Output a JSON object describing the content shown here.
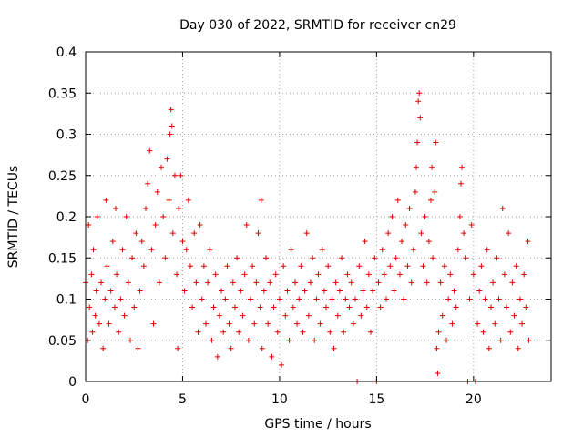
{
  "chart_data": {
    "type": "scatter",
    "title": "Day 030 of 2022, SRMTID for receiver cn29",
    "xlabel": "GPS time / hours",
    "ylabel": "SRMTID / TECUs",
    "xlim": [
      0,
      24
    ],
    "ylim": [
      0,
      0.4
    ],
    "xticks": [
      0,
      5,
      10,
      15,
      20
    ],
    "xtick_labels": [
      "0",
      "5",
      "10",
      "15",
      "20"
    ],
    "yticks": [
      0,
      0.05,
      0.1,
      0.15,
      0.2,
      0.25,
      0.3,
      0.35,
      0.4
    ],
    "ytick_labels": [
      "0",
      "0.05",
      "0.1",
      "0.15",
      "0.2",
      "0.25",
      "0.3",
      "0.35",
      "0.4"
    ],
    "grid": true,
    "marker": "+",
    "color": "#e00000",
    "series": [
      {
        "name": "cn29",
        "points": [
          [
            0.0,
            0.12
          ],
          [
            0.1,
            0.05
          ],
          [
            0.15,
            0.19
          ],
          [
            0.2,
            0.09
          ],
          [
            0.3,
            0.13
          ],
          [
            0.35,
            0.06
          ],
          [
            0.4,
            0.16
          ],
          [
            0.5,
            0.08
          ],
          [
            0.55,
            0.11
          ],
          [
            0.6,
            0.2
          ],
          [
            0.7,
            0.07
          ],
          [
            0.8,
            0.12
          ],
          [
            0.9,
            0.04
          ],
          [
            1.0,
            0.1
          ],
          [
            1.05,
            0.22
          ],
          [
            1.1,
            0.14
          ],
          [
            1.2,
            0.07
          ],
          [
            1.3,
            0.11
          ],
          [
            1.4,
            0.17
          ],
          [
            1.5,
            0.09
          ],
          [
            1.55,
            0.21
          ],
          [
            1.6,
            0.13
          ],
          [
            1.7,
            0.06
          ],
          [
            1.8,
            0.1
          ],
          [
            1.9,
            0.16
          ],
          [
            2.0,
            0.08
          ],
          [
            2.1,
            0.2
          ],
          [
            2.2,
            0.12
          ],
          [
            2.3,
            0.05
          ],
          [
            2.4,
            0.15
          ],
          [
            2.5,
            0.09
          ],
          [
            2.6,
            0.18
          ],
          [
            2.7,
            0.04
          ],
          [
            2.8,
            0.11
          ],
          [
            2.9,
            0.17
          ],
          [
            3.0,
            0.14
          ],
          [
            3.1,
            0.21
          ],
          [
            3.2,
            0.24
          ],
          [
            3.3,
            0.28
          ],
          [
            3.4,
            0.16
          ],
          [
            3.5,
            0.07
          ],
          [
            3.6,
            0.19
          ],
          [
            3.7,
            0.23
          ],
          [
            3.8,
            0.12
          ],
          [
            3.9,
            0.26
          ],
          [
            4.0,
            0.2
          ],
          [
            4.1,
            0.15
          ],
          [
            4.2,
            0.27
          ],
          [
            4.3,
            0.22
          ],
          [
            4.35,
            0.3
          ],
          [
            4.4,
            0.33
          ],
          [
            4.45,
            0.31
          ],
          [
            4.5,
            0.18
          ],
          [
            4.6,
            0.25
          ],
          [
            4.7,
            0.13
          ],
          [
            4.75,
            0.04
          ],
          [
            4.8,
            0.21
          ],
          [
            4.9,
            0.25
          ],
          [
            5.0,
            0.17
          ],
          [
            5.1,
            0.11
          ],
          [
            5.2,
            0.16
          ],
          [
            5.3,
            0.22
          ],
          [
            5.4,
            0.14
          ],
          [
            5.5,
            0.09
          ],
          [
            5.6,
            0.18
          ],
          [
            5.7,
            0.12
          ],
          [
            5.8,
            0.06
          ],
          [
            5.9,
            0.19
          ],
          [
            6.0,
            0.1
          ],
          [
            6.1,
            0.14
          ],
          [
            6.2,
            0.07
          ],
          [
            6.3,
            0.12
          ],
          [
            6.4,
            0.16
          ],
          [
            6.5,
            0.05
          ],
          [
            6.6,
            0.09
          ],
          [
            6.7,
            0.13
          ],
          [
            6.8,
            0.03
          ],
          [
            6.9,
            0.08
          ],
          [
            7.0,
            0.11
          ],
          [
            7.1,
            0.06
          ],
          [
            7.2,
            0.1
          ],
          [
            7.3,
            0.14
          ],
          [
            7.4,
            0.07
          ],
          [
            7.5,
            0.04
          ],
          [
            7.6,
            0.12
          ],
          [
            7.7,
            0.09
          ],
          [
            7.8,
            0.15
          ],
          [
            7.9,
            0.06
          ],
          [
            8.0,
            0.11
          ],
          [
            8.1,
            0.08
          ],
          [
            8.2,
            0.13
          ],
          [
            8.3,
            0.19
          ],
          [
            8.4,
            0.05
          ],
          [
            8.5,
            0.1
          ],
          [
            8.6,
            0.14
          ],
          [
            8.7,
            0.07
          ],
          [
            8.8,
            0.12
          ],
          [
            8.9,
            0.18
          ],
          [
            9.0,
            0.09
          ],
          [
            9.05,
            0.22
          ],
          [
            9.1,
            0.04
          ],
          [
            9.2,
            0.11
          ],
          [
            9.3,
            0.15
          ],
          [
            9.4,
            0.07
          ],
          [
            9.5,
            0.12
          ],
          [
            9.6,
            0.03
          ],
          [
            9.7,
            0.09
          ],
          [
            9.8,
            0.13
          ],
          [
            9.9,
            0.06
          ],
          [
            10.0,
            0.1
          ],
          [
            10.1,
            0.02
          ],
          [
            10.2,
            0.14
          ],
          [
            10.3,
            0.08
          ],
          [
            10.4,
            0.11
          ],
          [
            10.5,
            0.05
          ],
          [
            10.6,
            0.16
          ],
          [
            10.7,
            0.09
          ],
          [
            10.8,
            0.12
          ],
          [
            10.9,
            0.07
          ],
          [
            11.0,
            0.1
          ],
          [
            11.1,
            0.14
          ],
          [
            11.2,
            0.06
          ],
          [
            11.3,
            0.11
          ],
          [
            11.4,
            0.18
          ],
          [
            11.5,
            0.08
          ],
          [
            11.6,
            0.12
          ],
          [
            11.7,
            0.15
          ],
          [
            11.8,
            0.05
          ],
          [
            11.9,
            0.1
          ],
          [
            12.0,
            0.13
          ],
          [
            12.1,
            0.07
          ],
          [
            12.2,
            0.16
          ],
          [
            12.3,
            0.11
          ],
          [
            12.4,
            0.09
          ],
          [
            12.5,
            0.14
          ],
          [
            12.6,
            0.06
          ],
          [
            12.7,
            0.1
          ],
          [
            12.8,
            0.04
          ],
          [
            12.9,
            0.12
          ],
          [
            13.0,
            0.08
          ],
          [
            13.1,
            0.11
          ],
          [
            13.2,
            0.15
          ],
          [
            13.3,
            0.06
          ],
          [
            13.4,
            0.1
          ],
          [
            13.5,
            0.13
          ],
          [
            13.6,
            0.09
          ],
          [
            13.7,
            0.12
          ],
          [
            13.8,
            0.07
          ],
          [
            13.9,
            0.1
          ],
          [
            14.0,
            0.0
          ],
          [
            14.1,
            0.14
          ],
          [
            14.2,
            0.08
          ],
          [
            14.3,
            0.11
          ],
          [
            14.4,
            0.17
          ],
          [
            14.5,
            0.09
          ],
          [
            14.6,
            0.13
          ],
          [
            14.7,
            0.06
          ],
          [
            14.8,
            0.11
          ],
          [
            14.9,
            0.15
          ],
          [
            15.0,
            0.0
          ],
          [
            15.1,
            0.12
          ],
          [
            15.2,
            0.09
          ],
          [
            15.3,
            0.16
          ],
          [
            15.4,
            0.13
          ],
          [
            15.5,
            0.1
          ],
          [
            15.6,
            0.18
          ],
          [
            15.7,
            0.14
          ],
          [
            15.8,
            0.2
          ],
          [
            15.9,
            0.11
          ],
          [
            16.0,
            0.15
          ],
          [
            16.1,
            0.22
          ],
          [
            16.2,
            0.13
          ],
          [
            16.3,
            0.17
          ],
          [
            16.4,
            0.1
          ],
          [
            16.5,
            0.19
          ],
          [
            16.6,
            0.14
          ],
          [
            16.7,
            0.21
          ],
          [
            16.8,
            0.12
          ],
          [
            16.9,
            0.16
          ],
          [
            17.0,
            0.23
          ],
          [
            17.05,
            0.26
          ],
          [
            17.1,
            0.29
          ],
          [
            17.15,
            0.34
          ],
          [
            17.2,
            0.35
          ],
          [
            17.25,
            0.32
          ],
          [
            17.3,
            0.18
          ],
          [
            17.4,
            0.14
          ],
          [
            17.5,
            0.2
          ],
          [
            17.6,
            0.12
          ],
          [
            17.7,
            0.17
          ],
          [
            17.8,
            0.22
          ],
          [
            17.85,
            0.26
          ],
          [
            17.9,
            0.15
          ],
          [
            18.0,
            0.23
          ],
          [
            18.05,
            0.29
          ],
          [
            18.1,
            0.04
          ],
          [
            18.15,
            0.01
          ],
          [
            18.2,
            0.06
          ],
          [
            18.3,
            0.12
          ],
          [
            18.4,
            0.08
          ],
          [
            18.5,
            0.14
          ],
          [
            18.6,
            0.05
          ],
          [
            18.7,
            0.1
          ],
          [
            18.8,
            0.13
          ],
          [
            18.9,
            0.07
          ],
          [
            19.0,
            0.11
          ],
          [
            19.1,
            0.09
          ],
          [
            19.2,
            0.16
          ],
          [
            19.3,
            0.2
          ],
          [
            19.35,
            0.24
          ],
          [
            19.4,
            0.26
          ],
          [
            19.5,
            0.18
          ],
          [
            19.6,
            0.15
          ],
          [
            19.7,
            0.0
          ],
          [
            19.8,
            0.1
          ],
          [
            19.9,
            0.19
          ],
          [
            20.0,
            0.13
          ],
          [
            20.1,
            0.0
          ],
          [
            20.2,
            0.07
          ],
          [
            20.3,
            0.11
          ],
          [
            20.4,
            0.14
          ],
          [
            20.5,
            0.06
          ],
          [
            20.6,
            0.1
          ],
          [
            20.7,
            0.16
          ],
          [
            20.8,
            0.04
          ],
          [
            20.9,
            0.09
          ],
          [
            21.0,
            0.12
          ],
          [
            21.1,
            0.07
          ],
          [
            21.2,
            0.15
          ],
          [
            21.3,
            0.1
          ],
          [
            21.4,
            0.05
          ],
          [
            21.5,
            0.21
          ],
          [
            21.6,
            0.13
          ],
          [
            21.7,
            0.09
          ],
          [
            21.8,
            0.18
          ],
          [
            21.9,
            0.06
          ],
          [
            22.0,
            0.12
          ],
          [
            22.1,
            0.08
          ],
          [
            22.2,
            0.14
          ],
          [
            22.3,
            0.04
          ],
          [
            22.4,
            0.1
          ],
          [
            22.5,
            0.07
          ],
          [
            22.6,
            0.13
          ],
          [
            22.7,
            0.09
          ],
          [
            22.8,
            0.17
          ],
          [
            22.85,
            0.05
          ]
        ]
      }
    ]
  }
}
